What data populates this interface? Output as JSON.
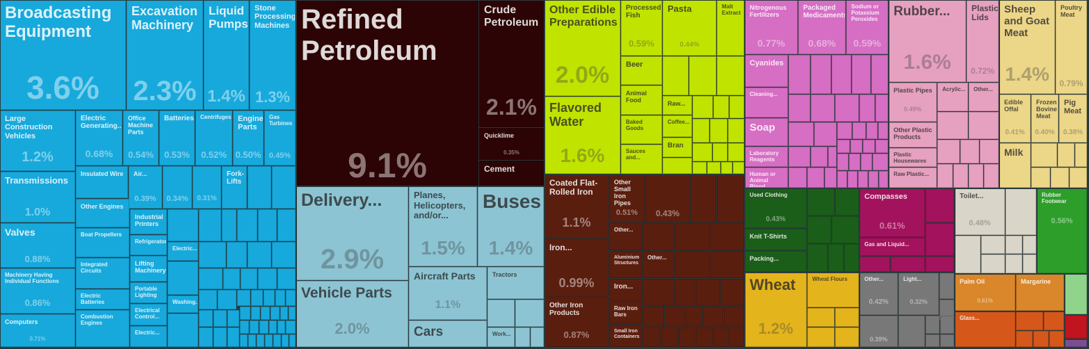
{
  "chart_data": {
    "type": "treemap",
    "colors": {
      "machinery": "#17a9dc",
      "mineral": "#2d0405",
      "transport": "#8cc4d3",
      "foodstuffs": "#c0e400",
      "metals": "#5a1e0f",
      "chemicals": "#d66ec4",
      "plastics": "#e7a1c0",
      "animal": "#ecd688",
      "textiles": "#1b5e1a",
      "instruments": "#a3125c",
      "vegetable": "#e4b41c",
      "misc": "#787878",
      "stone": "#d9d5c8",
      "footwear": "#2e9e2a",
      "fats": "#d9872a",
      "glass": "#d5581a",
      "weapons": "#c0141e",
      "art": "#7b4e93",
      "green_small": "#8fd48a"
    },
    "items": [
      {
        "name": "Broadcasting Equipment",
        "value": 3.6,
        "pct": "3.6%",
        "group": "machinery"
      },
      {
        "name": "Excavation Machinery",
        "value": 2.3,
        "pct": "2.3%",
        "group": "machinery"
      },
      {
        "name": "Liquid Pumps",
        "value": 1.4,
        "pct": "1.4%",
        "group": "machinery"
      },
      {
        "name": "Stone Processing Machines",
        "value": 1.3,
        "pct": "1.3%",
        "group": "machinery"
      },
      {
        "name": "Large Construction Vehicles",
        "value": 1.2,
        "pct": "1.2%",
        "group": "machinery"
      },
      {
        "name": "Electric Generating...",
        "value": 0.68,
        "pct": "0.68%",
        "group": "machinery"
      },
      {
        "name": "Office Machine Parts",
        "value": 0.54,
        "pct": "0.54%",
        "group": "machinery"
      },
      {
        "name": "Batteries",
        "value": 0.53,
        "pct": "0.53%",
        "group": "machinery"
      },
      {
        "name": "Centrifuges",
        "value": 0.52,
        "pct": "0.52%",
        "group": "machinery"
      },
      {
        "name": "Engine Parts",
        "value": 0.5,
        "pct": "0.50%",
        "group": "machinery"
      },
      {
        "name": "Gas Turbines",
        "value": 0.45,
        "pct": "0.45%",
        "group": "machinery"
      },
      {
        "name": "Transmissions",
        "value": 1.0,
        "pct": "1.0%",
        "group": "machinery"
      },
      {
        "name": "Insulated Wire",
        "value": 0,
        "pct": "",
        "group": "machinery"
      },
      {
        "name": "Air...",
        "value": 0.39,
        "pct": "0.39%",
        "group": "machinery"
      },
      {
        "name": "",
        "value": 0.34,
        "pct": "0.34%",
        "group": "machinery"
      },
      {
        "name": "",
        "value": 0.31,
        "pct": "0.31%",
        "group": "machinery"
      },
      {
        "name": "Fork-Lifts",
        "value": 0,
        "pct": "",
        "group": "machinery"
      },
      {
        "name": "Valves",
        "value": 0.88,
        "pct": "0.88%",
        "group": "machinery"
      },
      {
        "name": "Other Engines",
        "value": 0,
        "pct": "",
        "group": "machinery"
      },
      {
        "name": "Industrial Printers",
        "value": 0,
        "pct": "",
        "group": "machinery"
      },
      {
        "name": "Refrigerators",
        "value": 0,
        "pct": "",
        "group": "machinery"
      },
      {
        "name": "Boat Propellers",
        "value": 0,
        "pct": "",
        "group": "machinery"
      },
      {
        "name": "Electric...",
        "value": 0,
        "pct": "",
        "group": "machinery"
      },
      {
        "name": "Machinery Having Individual Functions",
        "value": 0.86,
        "pct": "0.86%",
        "group": "machinery"
      },
      {
        "name": "Integrated Circuits",
        "value": 0,
        "pct": "",
        "group": "machinery"
      },
      {
        "name": "Lifting Machinery",
        "value": 0,
        "pct": "",
        "group": "machinery"
      },
      {
        "name": "Portable Lighting",
        "value": 0,
        "pct": "",
        "group": "machinery"
      },
      {
        "name": "Electric Batteries",
        "value": 0,
        "pct": "",
        "group": "machinery"
      },
      {
        "name": "Washing...",
        "value": 0,
        "pct": "",
        "group": "machinery"
      },
      {
        "name": "Electrical Control...",
        "value": 0,
        "pct": "",
        "group": "machinery"
      },
      {
        "name": "Computers",
        "value": 0.71,
        "pct": "0.71%",
        "group": "machinery"
      },
      {
        "name": "Combustion Engines",
        "value": 0,
        "pct": "",
        "group": "machinery"
      },
      {
        "name": "Electric...",
        "value": 0,
        "pct": "",
        "group": "machinery"
      },
      {
        "name": "Refined Petroleum",
        "value": 9.1,
        "pct": "9.1%",
        "group": "mineral"
      },
      {
        "name": "Crude Petroleum",
        "value": 2.1,
        "pct": "2.1%",
        "group": "mineral"
      },
      {
        "name": "Quicklime",
        "value": 0.35,
        "pct": "0.35%",
        "group": "mineral"
      },
      {
        "name": "Cement",
        "value": 0,
        "pct": "",
        "group": "mineral"
      },
      {
        "name": "Delivery...",
        "value": 2.9,
        "pct": "2.9%",
        "group": "transport"
      },
      {
        "name": "Planes, Helicopters, and/or...",
        "value": 1.5,
        "pct": "1.5%",
        "group": "transport"
      },
      {
        "name": "Buses",
        "value": 1.4,
        "pct": "1.4%",
        "group": "transport"
      },
      {
        "name": "Vehicle Parts",
        "value": 2.0,
        "pct": "2.0%",
        "group": "transport"
      },
      {
        "name": "Aircraft Parts",
        "value": 1.1,
        "pct": "1.1%",
        "group": "transport"
      },
      {
        "name": "Tractors",
        "value": 0,
        "pct": "",
        "group": "transport"
      },
      {
        "name": "Cars",
        "value": 0,
        "pct": "",
        "group": "transport"
      },
      {
        "name": "Work...",
        "value": 0,
        "pct": "",
        "group": "transport"
      },
      {
        "name": "Other Edible Preparations",
        "value": 2.0,
        "pct": "2.0%",
        "group": "foodstuffs"
      },
      {
        "name": "Processed Fish",
        "value": 0.59,
        "pct": "0.59%",
        "group": "foodstuffs"
      },
      {
        "name": "Pasta",
        "value": 0.44,
        "pct": "0.44%",
        "group": "foodstuffs"
      },
      {
        "name": "Malt Extract",
        "value": 0,
        "pct": "",
        "group": "foodstuffs"
      },
      {
        "name": "Beer",
        "value": 0,
        "pct": "",
        "group": "foodstuffs"
      },
      {
        "name": "Animal Food",
        "value": 0,
        "pct": "",
        "group": "foodstuffs"
      },
      {
        "name": "Raw...",
        "value": 0,
        "pct": "",
        "group": "foodstuffs"
      },
      {
        "name": "Flavored Water",
        "value": 1.6,
        "pct": "1.6%",
        "group": "foodstuffs"
      },
      {
        "name": "Baked Goods",
        "value": 0,
        "pct": "",
        "group": "foodstuffs"
      },
      {
        "name": "Coffee...",
        "value": 0,
        "pct": "",
        "group": "foodstuffs"
      },
      {
        "name": "Sauces and...",
        "value": 0,
        "pct": "",
        "group": "foodstuffs"
      },
      {
        "name": "Bran",
        "value": 0,
        "pct": "",
        "group": "foodstuffs"
      },
      {
        "name": "Nitrogenous Fertilizers",
        "value": 0.77,
        "pct": "0.77%",
        "group": "chemicals"
      },
      {
        "name": "Packaged Medicaments",
        "value": 0.68,
        "pct": "0.68%",
        "group": "chemicals"
      },
      {
        "name": "Sodium or Potassium Peroxides",
        "value": 0.59,
        "pct": "0.59%",
        "group": "chemicals"
      },
      {
        "name": "Cyanides",
        "value": 0,
        "pct": "",
        "group": "chemicals"
      },
      {
        "name": "Cleaning...",
        "value": 0,
        "pct": "",
        "group": "chemicals"
      },
      {
        "name": "Soap",
        "value": 0,
        "pct": "",
        "group": "chemicals"
      },
      {
        "name": "Laboratory Reagents",
        "value": 0,
        "pct": "",
        "group": "chemicals"
      },
      {
        "name": "Human or Animal Blood",
        "value": 0,
        "pct": "",
        "group": "chemicals"
      },
      {
        "name": "Rubber...",
        "value": 1.6,
        "pct": "1.6%",
        "group": "plastics"
      },
      {
        "name": "Plastic Lids",
        "value": 0.72,
        "pct": "0.72%",
        "group": "plastics"
      },
      {
        "name": "Plastic Pipes",
        "value": 0.49,
        "pct": "0.49%",
        "group": "plastics"
      },
      {
        "name": "Acrylic...",
        "value": 0,
        "pct": "",
        "group": "plastics"
      },
      {
        "name": "Other...",
        "value": 0,
        "pct": "",
        "group": "plastics"
      },
      {
        "name": "Other Plastic Products",
        "value": 0,
        "pct": "",
        "group": "plastics"
      },
      {
        "name": "Plastic Housewares",
        "value": 0,
        "pct": "",
        "group": "plastics"
      },
      {
        "name": "Raw Plastic...",
        "value": 0,
        "pct": "",
        "group": "plastics"
      },
      {
        "name": "Sheep and Goat Meat",
        "value": 1.4,
        "pct": "1.4%",
        "group": "animal"
      },
      {
        "name": "Poultry Meat",
        "value": 0.79,
        "pct": "0.79%",
        "group": "animal"
      },
      {
        "name": "Edible Offal",
        "value": 0.41,
        "pct": "0.41%",
        "group": "animal"
      },
      {
        "name": "Frozen Bovine Meat",
        "value": 0.4,
        "pct": "0.40%",
        "group": "animal"
      },
      {
        "name": "Pig Meat",
        "value": 0.38,
        "pct": "0.38%",
        "group": "animal"
      },
      {
        "name": "Milk",
        "value": 0,
        "pct": "",
        "group": "animal"
      },
      {
        "name": "Coated Flat-Rolled Iron",
        "value": 1.1,
        "pct": "1.1%",
        "group": "metals"
      },
      {
        "name": "Other Small Iron Pipes",
        "value": 0.51,
        "pct": "0.51%",
        "group": "metals"
      },
      {
        "name": "",
        "value": 0.43,
        "pct": "0.43%",
        "group": "metals"
      },
      {
        "name": "Iron...",
        "value": 0.99,
        "pct": "0.99%",
        "group": "metals"
      },
      {
        "name": "Other...",
        "value": 0,
        "pct": "",
        "group": "metals"
      },
      {
        "name": "Aluminium Structures",
        "value": 0,
        "pct": "",
        "group": "metals"
      },
      {
        "name": "Other...",
        "value": 0,
        "pct": "",
        "group": "metals"
      },
      {
        "name": "Other Iron Products",
        "value": 0.87,
        "pct": "0.87%",
        "group": "metals"
      },
      {
        "name": "Iron...",
        "value": 0,
        "pct": "",
        "group": "metals"
      },
      {
        "name": "Raw Iron Bars",
        "value": 0,
        "pct": "",
        "group": "metals"
      },
      {
        "name": "Small Iron Containers",
        "value": 0,
        "pct": "",
        "group": "metals"
      },
      {
        "name": "Used Clothing",
        "value": 0.43,
        "pct": "0.43%",
        "group": "textiles"
      },
      {
        "name": "Knit T-Shirts",
        "value": 0,
        "pct": "",
        "group": "textiles"
      },
      {
        "name": "Packing...",
        "value": 0,
        "pct": "",
        "group": "textiles"
      },
      {
        "name": "Compasses",
        "value": 0.61,
        "pct": "0.61%",
        "group": "instruments"
      },
      {
        "name": "Gas and Liquid...",
        "value": 0,
        "pct": "",
        "group": "instruments"
      },
      {
        "name": "Toilet...",
        "value": 0.48,
        "pct": "0.48%",
        "group": "stone"
      },
      {
        "name": "Rubber Footwear",
        "value": 0.56,
        "pct": "0.56%",
        "group": "footwear"
      },
      {
        "name": "Wheat",
        "value": 1.2,
        "pct": "1.2%",
        "group": "vegetable"
      },
      {
        "name": "Wheat Flours",
        "value": 0,
        "pct": "",
        "group": "vegetable"
      },
      {
        "name": "Other...",
        "value": 0.42,
        "pct": "0.42%",
        "group": "misc"
      },
      {
        "name": "Light...",
        "value": 0.32,
        "pct": "0.32%",
        "group": "misc"
      },
      {
        "name": "",
        "value": 0.39,
        "pct": "0.39%",
        "group": "misc"
      },
      {
        "name": "Palm Oil",
        "value": 0.61,
        "pct": "0.61%",
        "group": "fats"
      },
      {
        "name": "Margarine",
        "value": 0,
        "pct": "",
        "group": "fats"
      },
      {
        "name": "Glass...",
        "value": 0,
        "pct": "",
        "group": "glass"
      }
    ]
  }
}
